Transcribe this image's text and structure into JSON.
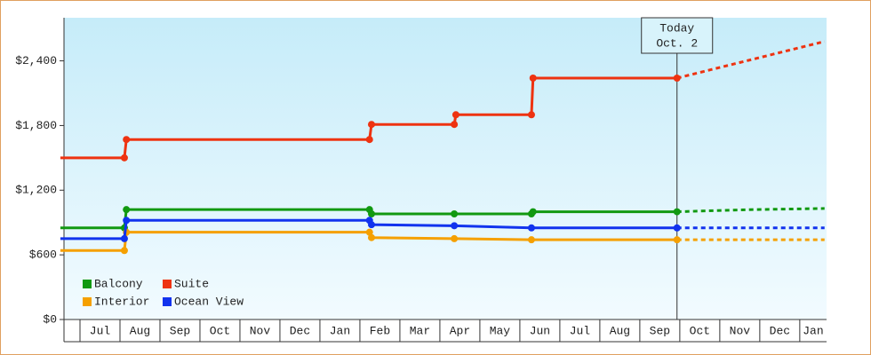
{
  "chart_data": {
    "type": "step-line",
    "categories": [
      "Jul",
      "Aug",
      "Sep",
      "Oct",
      "Nov",
      "Dec",
      "Jan",
      "Feb",
      "Mar",
      "Apr",
      "May",
      "Jun",
      "Jul",
      "Aug",
      "Sep",
      "Oct",
      "Nov",
      "Dec",
      "Jan"
    ],
    "xlim": [
      -0.4,
      18.67
    ],
    "ylim": [
      0,
      2800
    ],
    "yticks": [
      {
        "value": 0,
        "label": "$0"
      },
      {
        "value": 600,
        "label": "$600"
      },
      {
        "value": 1200,
        "label": "$1,200"
      },
      {
        "value": 1800,
        "label": "$1,800"
      },
      {
        "value": 2400,
        "label": "$2,400"
      }
    ],
    "today": {
      "x": 14.93,
      "label": [
        "Today",
        "Oct. 2"
      ]
    },
    "series": [
      {
        "name": "Balcony",
        "color": "#119911",
        "x": [
          -0.49,
          1.11,
          1.16,
          7.24,
          7.29,
          9.36,
          11.29,
          11.33,
          14.93
        ],
        "values": [
          850,
          850,
          1020,
          1020,
          980,
          980,
          980,
          1000,
          1000
        ],
        "forecast_x": [
          14.93,
          16.84,
          18.62
        ],
        "forecast_values": [
          1000,
          1020,
          1030
        ]
      },
      {
        "name": "Suite",
        "color": "#ee3311",
        "x": [
          -0.49,
          1.11,
          1.16,
          7.24,
          7.29,
          9.36,
          9.4,
          11.29,
          11.33,
          14.93
        ],
        "values": [
          1500,
          1500,
          1670,
          1670,
          1810,
          1810,
          1900,
          1900,
          2240,
          2240
        ],
        "forecast_x": [
          14.93,
          18.62
        ],
        "forecast_values": [
          2240,
          2580
        ]
      },
      {
        "name": "Interior",
        "color": "#f5a000",
        "x": [
          -0.49,
          1.11,
          1.16,
          7.24,
          7.29,
          9.36,
          11.29,
          14.93
        ],
        "values": [
          640,
          640,
          810,
          810,
          760,
          750,
          740,
          740
        ],
        "forecast_x": [
          14.93,
          18.62
        ],
        "forecast_values": [
          740,
          740
        ]
      },
      {
        "name": "Ocean View",
        "color": "#1133ee",
        "x": [
          -0.49,
          1.11,
          1.16,
          7.24,
          7.29,
          9.36,
          11.29,
          14.93
        ],
        "values": [
          750,
          750,
          920,
          920,
          880,
          870,
          850,
          850
        ],
        "forecast_x": [
          14.93,
          18.62
        ],
        "forecast_values": [
          850,
          850
        ]
      }
    ]
  }
}
